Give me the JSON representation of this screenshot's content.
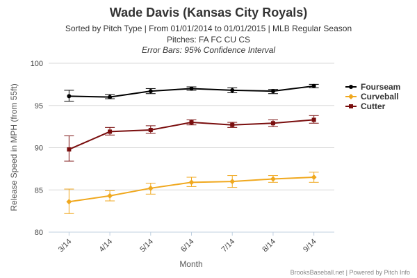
{
  "chart_data": {
    "type": "line",
    "title": "Wade Davis (Kansas City Royals)",
    "subtitle": "Sorted by Pitch Type | From 01/01/2014 to 01/01/2015 | MLB Regular Season",
    "pitches_line": "Pitches: FA FC CU CS",
    "error_bars_note": "Error Bars: 95% Confidence Interval",
    "xlabel": "Month",
    "ylabel": "Release Speed in MPH (from 55ft)",
    "categories": [
      "3/14",
      "4/14",
      "5/14",
      "6/14",
      "7/14",
      "8/14",
      "9/14"
    ],
    "ylim": [
      80,
      100
    ],
    "yticks": [
      80,
      85,
      90,
      95,
      100
    ],
    "grid": true,
    "legend_position": "right",
    "series": [
      {
        "name": "Fourseam",
        "color": "#000000",
        "marker": "circle",
        "values": [
          96.1,
          96.0,
          96.7,
          97.0,
          96.8,
          96.7,
          97.3
        ],
        "err_low": [
          95.5,
          95.8,
          96.4,
          96.8,
          96.5,
          96.4,
          97.1
        ],
        "err_high": [
          96.8,
          96.3,
          97.0,
          97.2,
          97.1,
          96.9,
          97.5
        ]
      },
      {
        "name": "Curveball",
        "color": "#f0a81e",
        "marker": "diamond",
        "values": [
          83.6,
          84.3,
          85.2,
          85.9,
          86.0,
          86.3,
          86.5
        ],
        "err_low": [
          82.2,
          83.7,
          84.5,
          85.4,
          85.3,
          85.9,
          85.9
        ],
        "err_high": [
          85.1,
          84.9,
          85.8,
          86.5,
          86.7,
          86.7,
          87.1
        ]
      },
      {
        "name": "Cutter",
        "color": "#7a0e0e",
        "marker": "square",
        "values": [
          89.8,
          91.9,
          92.1,
          93.0,
          92.7,
          92.9,
          93.3
        ],
        "err_low": [
          88.4,
          91.5,
          91.7,
          92.7,
          92.4,
          92.5,
          92.9
        ],
        "err_high": [
          91.4,
          92.4,
          92.6,
          93.3,
          93.0,
          93.3,
          93.8
        ]
      }
    ],
    "credits": "BrooksBaseball.net | Powered by Pitch Info"
  }
}
